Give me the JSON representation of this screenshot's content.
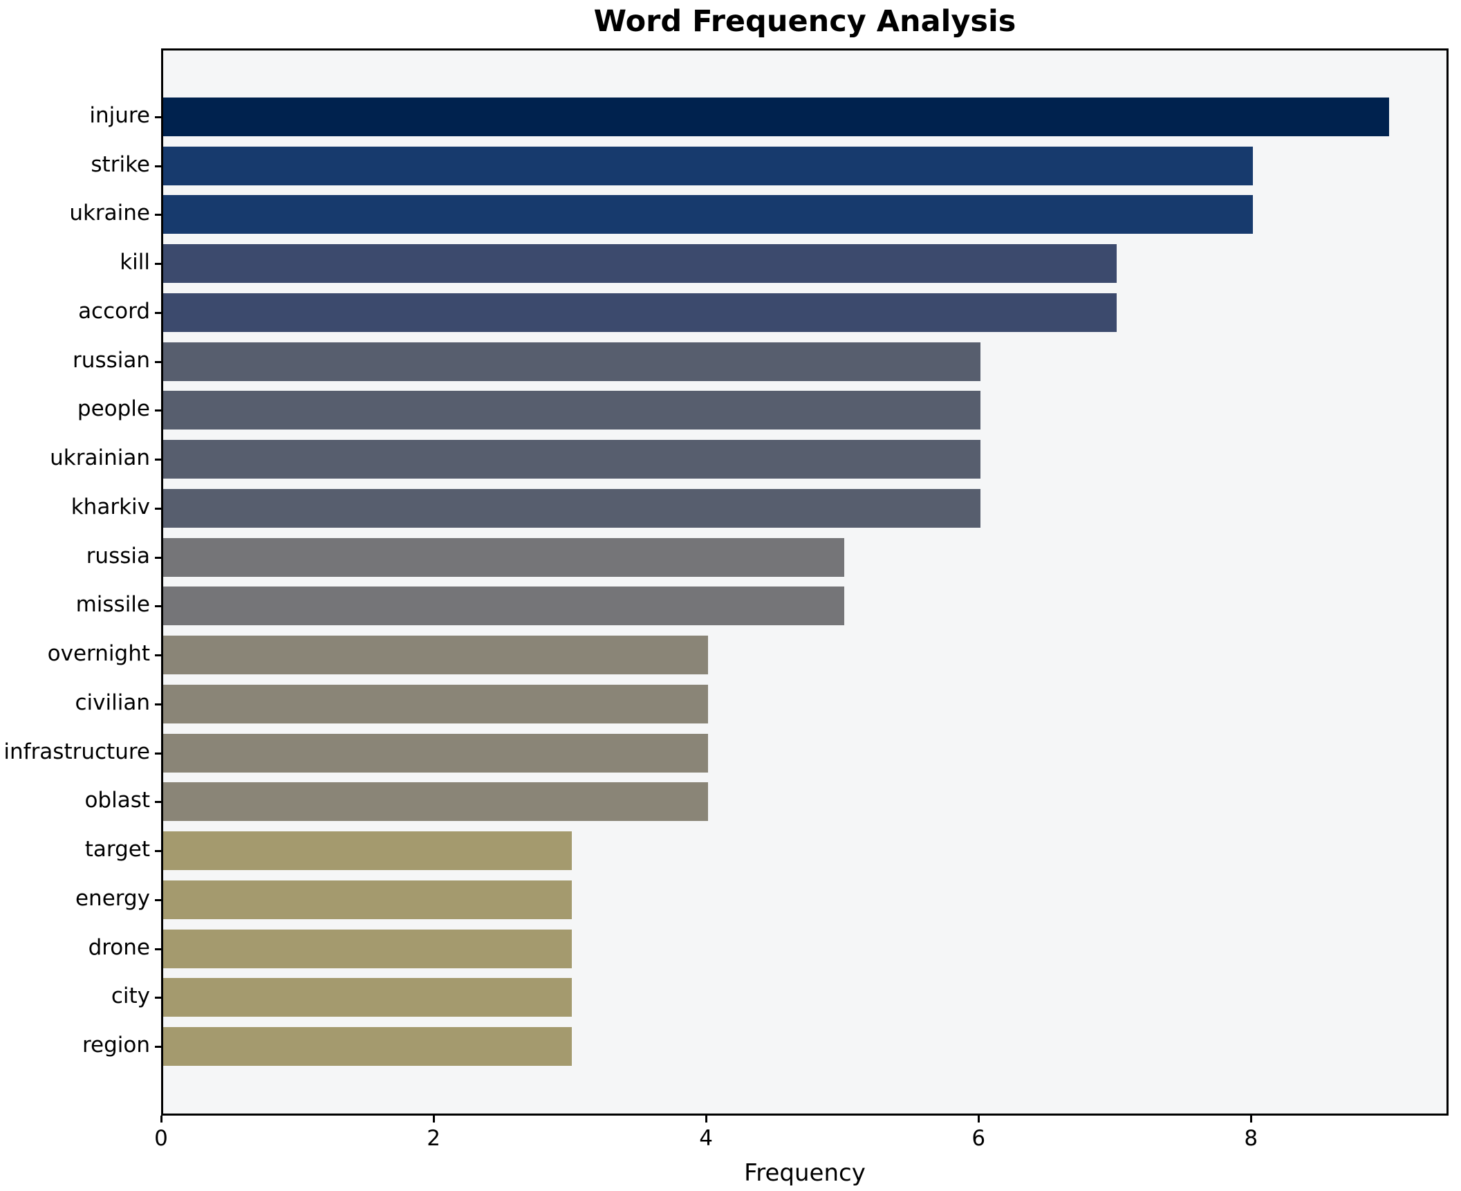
{
  "chart_data": {
    "type": "bar",
    "orientation": "horizontal",
    "title": "Word Frequency Analysis",
    "xlabel": "Frequency",
    "ylabel": "",
    "categories": [
      "injure",
      "strike",
      "ukraine",
      "kill",
      "accord",
      "russian",
      "people",
      "ukrainian",
      "kharkiv",
      "russia",
      "missile",
      "overnight",
      "civilian",
      "infrastructure",
      "oblast",
      "target",
      "energy",
      "drone",
      "city",
      "region"
    ],
    "values": [
      9,
      8,
      8,
      7,
      7,
      6,
      6,
      6,
      6,
      5,
      5,
      4,
      4,
      4,
      4,
      3,
      3,
      3,
      3,
      3
    ],
    "bar_colors": [
      "#00224e",
      "#173a6d",
      "#173a6d",
      "#3c4a6d",
      "#3c4a6d",
      "#575e6e",
      "#575e6e",
      "#575e6e",
      "#575e6e",
      "#757578",
      "#757578",
      "#8a8577",
      "#8a8577",
      "#8a8577",
      "#8a8577",
      "#a49a6e",
      "#a49a6e",
      "#a49a6e",
      "#a49a6e",
      "#a49a6e"
    ],
    "xticks": [
      0,
      2,
      4,
      6,
      8
    ],
    "xlim": [
      0,
      9.45
    ],
    "grid": false,
    "legend": "none",
    "colors": {
      "figure_background": "#ffffff",
      "plot_background": "#f5f6f7",
      "spine": "#000000",
      "text": "#000000"
    }
  },
  "layout_note_values_visible_only": true
}
